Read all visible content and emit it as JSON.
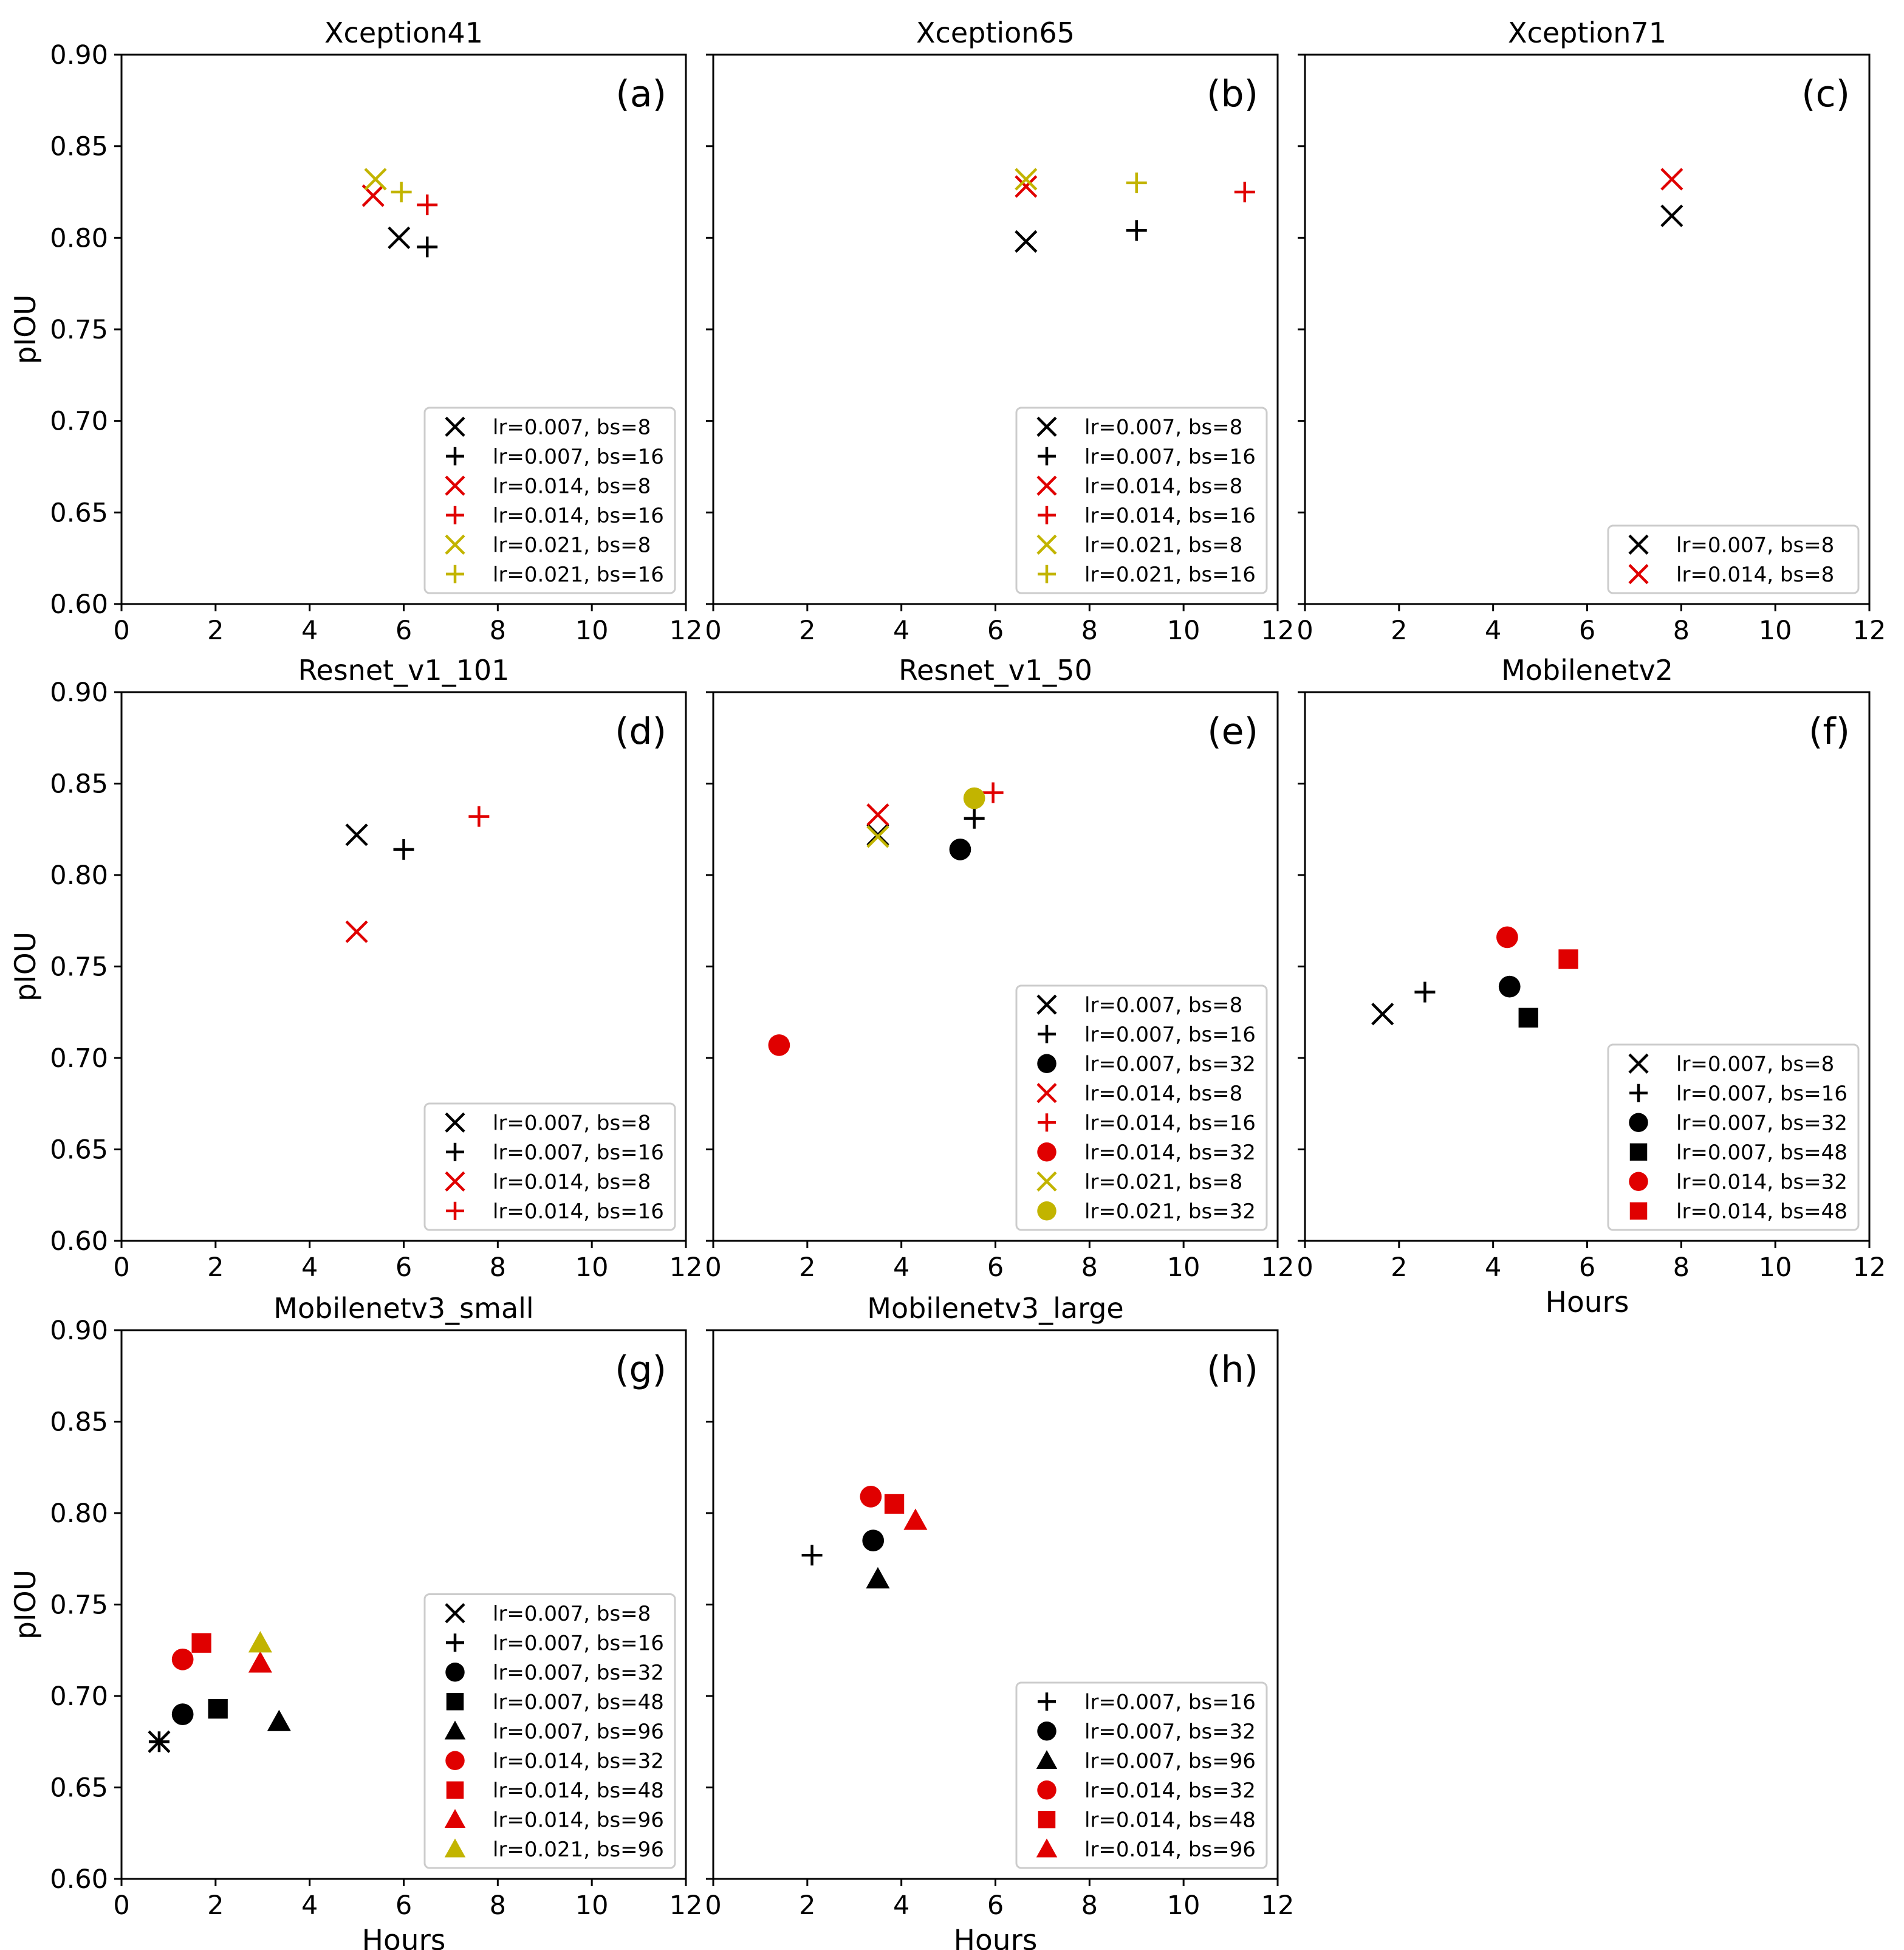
{
  "figure": {
    "ylabel": "pIOU",
    "xlabel": "Hours"
  },
  "colors": {
    "black": "#000000",
    "red": "#e00000",
    "yellow": "#c2b400"
  },
  "chart_data": [
    {
      "type": "scatter",
      "title": "Xception41",
      "letter": "(a)",
      "xlim": [
        0,
        12
      ],
      "ylim": [
        0.6,
        0.9
      ],
      "xticks": [
        "0",
        "2",
        "4",
        "6",
        "8",
        "10",
        "12"
      ],
      "yticks": [
        "0.60",
        "0.65",
        "0.70",
        "0.75",
        "0.80",
        "0.85",
        "0.90"
      ],
      "ylabel": "pIOU",
      "xlabel": "",
      "legend": "bottom-right",
      "grid": true,
      "series": [
        {
          "name": "lr=0.007, bs=8",
          "marker": "x",
          "color": "#000000",
          "x": [
            5.9
          ],
          "y": [
            0.8
          ]
        },
        {
          "name": "lr=0.007, bs=16",
          "marker": "+",
          "color": "#000000",
          "x": [
            6.5
          ],
          "y": [
            0.795
          ]
        },
        {
          "name": "lr=0.014, bs=8",
          "marker": "x",
          "color": "#e00000",
          "x": [
            5.35
          ],
          "y": [
            0.823
          ]
        },
        {
          "name": "lr=0.014, bs=16",
          "marker": "+",
          "color": "#e00000",
          "x": [
            6.5
          ],
          "y": [
            0.818
          ]
        },
        {
          "name": "lr=0.021, bs=8",
          "marker": "x",
          "color": "#c2b400",
          "x": [
            5.4
          ],
          "y": [
            0.832
          ]
        },
        {
          "name": "lr=0.021, bs=16",
          "marker": "+",
          "color": "#c2b400",
          "x": [
            5.95
          ],
          "y": [
            0.825
          ]
        }
      ]
    },
    {
      "type": "scatter",
      "title": "Xception65",
      "letter": "(b)",
      "xlim": [
        0,
        12
      ],
      "ylim": [
        0.6,
        0.9
      ],
      "xticks": [
        "0",
        "2",
        "4",
        "6",
        "8",
        "10",
        "12"
      ],
      "yticks": [
        "0.60",
        "0.65",
        "0.70",
        "0.75",
        "0.80",
        "0.85",
        "0.90"
      ],
      "ylabel": "",
      "xlabel": "",
      "legend": "bottom-right",
      "grid": true,
      "series": [
        {
          "name": "lr=0.007, bs=8",
          "marker": "x",
          "color": "#000000",
          "x": [
            6.65
          ],
          "y": [
            0.798
          ]
        },
        {
          "name": "lr=0.007, bs=16",
          "marker": "+",
          "color": "#000000",
          "x": [
            9.0
          ],
          "y": [
            0.804
          ]
        },
        {
          "name": "lr=0.014, bs=8",
          "marker": "x",
          "color": "#e00000",
          "x": [
            6.65
          ],
          "y": [
            0.828
          ]
        },
        {
          "name": "lr=0.014, bs=16",
          "marker": "+",
          "color": "#e00000",
          "x": [
            11.3
          ],
          "y": [
            0.825
          ]
        },
        {
          "name": "lr=0.021, bs=8",
          "marker": "x",
          "color": "#c2b400",
          "x": [
            6.65
          ],
          "y": [
            0.832
          ]
        },
        {
          "name": "lr=0.021, bs=16",
          "marker": "+",
          "color": "#c2b400",
          "x": [
            9.0
          ],
          "y": [
            0.83
          ]
        }
      ]
    },
    {
      "type": "scatter",
      "title": "Xception71",
      "letter": "(c)",
      "xlim": [
        0,
        12
      ],
      "ylim": [
        0.6,
        0.9
      ],
      "xticks": [
        "0",
        "2",
        "4",
        "6",
        "8",
        "10",
        "12"
      ],
      "yticks": [
        "0.60",
        "0.65",
        "0.70",
        "0.75",
        "0.80",
        "0.85",
        "0.90"
      ],
      "ylabel": "",
      "xlabel": "",
      "legend": "bottom-right",
      "grid": true,
      "series": [
        {
          "name": "lr=0.007, bs=8",
          "marker": "x",
          "color": "#000000",
          "x": [
            7.8
          ],
          "y": [
            0.812
          ]
        },
        {
          "name": "lr=0.014, bs=8",
          "marker": "x",
          "color": "#e00000",
          "x": [
            7.8
          ],
          "y": [
            0.832
          ]
        }
      ]
    },
    {
      "type": "scatter",
      "title": "Resnet_v1_101",
      "letter": "(d)",
      "xlim": [
        0,
        12
      ],
      "ylim": [
        0.6,
        0.9
      ],
      "xticks": [
        "0",
        "2",
        "4",
        "6",
        "8",
        "10",
        "12"
      ],
      "yticks": [
        "0.60",
        "0.65",
        "0.70",
        "0.75",
        "0.80",
        "0.85",
        "0.90"
      ],
      "ylabel": "pIOU",
      "xlabel": "",
      "legend": "bottom-right",
      "grid": true,
      "series": [
        {
          "name": "lr=0.007, bs=8",
          "marker": "x",
          "color": "#000000",
          "x": [
            5.0
          ],
          "y": [
            0.822
          ]
        },
        {
          "name": "lr=0.007, bs=16",
          "marker": "+",
          "color": "#000000",
          "x": [
            6.0
          ],
          "y": [
            0.814
          ]
        },
        {
          "name": "lr=0.014, bs=8",
          "marker": "x",
          "color": "#e00000",
          "x": [
            5.0
          ],
          "y": [
            0.769
          ]
        },
        {
          "name": "lr=0.014, bs=16",
          "marker": "+",
          "color": "#e00000",
          "x": [
            7.6
          ],
          "y": [
            0.832
          ]
        }
      ]
    },
    {
      "type": "scatter",
      "title": "Resnet_v1_50",
      "letter": "(e)",
      "xlim": [
        0,
        12
      ],
      "ylim": [
        0.6,
        0.9
      ],
      "xticks": [
        "0",
        "2",
        "4",
        "6",
        "8",
        "10",
        "12"
      ],
      "yticks": [
        "0.60",
        "0.65",
        "0.70",
        "0.75",
        "0.80",
        "0.85",
        "0.90"
      ],
      "ylabel": "",
      "xlabel": "",
      "legend": "bottom-right",
      "grid": true,
      "series": [
        {
          "name": "lr=0.007, bs=8",
          "marker": "x",
          "color": "#000000",
          "x": [
            3.5
          ],
          "y": [
            0.822
          ]
        },
        {
          "name": "lr=0.007, bs=16",
          "marker": "+",
          "color": "#000000",
          "x": [
            5.55
          ],
          "y": [
            0.831
          ]
        },
        {
          "name": "lr=0.007, bs=32",
          "marker": "o",
          "color": "#000000",
          "x": [
            5.25
          ],
          "y": [
            0.814
          ]
        },
        {
          "name": "lr=0.014, bs=8",
          "marker": "x",
          "color": "#e00000",
          "x": [
            3.5
          ],
          "y": [
            0.833
          ]
        },
        {
          "name": "lr=0.014, bs=16",
          "marker": "+",
          "color": "#e00000",
          "x": [
            5.95
          ],
          "y": [
            0.845
          ]
        },
        {
          "name": "lr=0.014, bs=32",
          "marker": "o",
          "color": "#e00000",
          "x": [
            1.4
          ],
          "y": [
            0.707
          ]
        },
        {
          "name": "lr=0.021, bs=8",
          "marker": "x",
          "color": "#c2b400",
          "x": [
            3.5
          ],
          "y": [
            0.821
          ]
        },
        {
          "name": "lr=0.021, bs=32",
          "marker": "o",
          "color": "#c2b400",
          "x": [
            5.55
          ],
          "y": [
            0.842
          ]
        }
      ]
    },
    {
      "type": "scatter",
      "title": "Mobilenetv2",
      "letter": "(f)",
      "xlim": [
        0,
        12
      ],
      "ylim": [
        0.6,
        0.9
      ],
      "xticks": [
        "0",
        "2",
        "4",
        "6",
        "8",
        "10",
        "12"
      ],
      "yticks": [
        "0.60",
        "0.65",
        "0.70",
        "0.75",
        "0.80",
        "0.85",
        "0.90"
      ],
      "ylabel": "",
      "xlabel": "Hours",
      "legend": "bottom-right",
      "grid": true,
      "series": [
        {
          "name": "lr=0.007, bs=8",
          "marker": "x",
          "color": "#000000",
          "x": [
            1.65
          ],
          "y": [
            0.724
          ]
        },
        {
          "name": "lr=0.007, bs=16",
          "marker": "+",
          "color": "#000000",
          "x": [
            2.55
          ],
          "y": [
            0.736
          ]
        },
        {
          "name": "lr=0.007, bs=32",
          "marker": "o",
          "color": "#000000",
          "x": [
            4.35
          ],
          "y": [
            0.739
          ]
        },
        {
          "name": "lr=0.007, bs=48",
          "marker": "s",
          "color": "#000000",
          "x": [
            4.75
          ],
          "y": [
            0.722
          ]
        },
        {
          "name": "lr=0.014, bs=32",
          "marker": "o",
          "color": "#e00000",
          "x": [
            4.3
          ],
          "y": [
            0.766
          ]
        },
        {
          "name": "lr=0.014, bs=48",
          "marker": "s",
          "color": "#e00000",
          "x": [
            5.6
          ],
          "y": [
            0.754
          ]
        }
      ]
    },
    {
      "type": "scatter",
      "title": "Mobilenetv3_small",
      "letter": "(g)",
      "xlim": [
        0,
        12
      ],
      "ylim": [
        0.6,
        0.9
      ],
      "xticks": [
        "0",
        "2",
        "4",
        "6",
        "8",
        "10",
        "12"
      ],
      "yticks": [
        "0.60",
        "0.65",
        "0.70",
        "0.75",
        "0.80",
        "0.85",
        "0.90"
      ],
      "ylabel": "pIOU",
      "xlabel": "Hours",
      "legend": "bottom-right",
      "grid": true,
      "series": [
        {
          "name": "lr=0.007, bs=8",
          "marker": "x",
          "color": "#000000",
          "x": [
            0.8
          ],
          "y": [
            0.675
          ]
        },
        {
          "name": "lr=0.007, bs=16",
          "marker": "+",
          "color": "#000000",
          "x": [
            0.8
          ],
          "y": [
            0.675
          ]
        },
        {
          "name": "lr=0.007, bs=32",
          "marker": "o",
          "color": "#000000",
          "x": [
            1.3
          ],
          "y": [
            0.69
          ]
        },
        {
          "name": "lr=0.007, bs=48",
          "marker": "s",
          "color": "#000000",
          "x": [
            2.05
          ],
          "y": [
            0.693
          ]
        },
        {
          "name": "lr=0.007, bs=96",
          "marker": "^",
          "color": "#000000",
          "x": [
            3.35
          ],
          "y": [
            0.686
          ]
        },
        {
          "name": "lr=0.014, bs=32",
          "marker": "o",
          "color": "#e00000",
          "x": [
            1.3
          ],
          "y": [
            0.72
          ]
        },
        {
          "name": "lr=0.014, bs=48",
          "marker": "s",
          "color": "#e00000",
          "x": [
            1.7
          ],
          "y": [
            0.729
          ]
        },
        {
          "name": "lr=0.014, bs=96",
          "marker": "^",
          "color": "#e00000",
          "x": [
            2.95
          ],
          "y": [
            0.718
          ]
        },
        {
          "name": "lr=0.021, bs=96",
          "marker": "^",
          "color": "#c2b400",
          "x": [
            2.95
          ],
          "y": [
            0.729
          ]
        }
      ]
    },
    {
      "type": "scatter",
      "title": "Mobilenetv3_large",
      "letter": "(h)",
      "xlim": [
        0,
        12
      ],
      "ylim": [
        0.6,
        0.9
      ],
      "xticks": [
        "0",
        "2",
        "4",
        "6",
        "8",
        "10",
        "12"
      ],
      "yticks": [
        "0.60",
        "0.65",
        "0.70",
        "0.75",
        "0.80",
        "0.85",
        "0.90"
      ],
      "ylabel": "",
      "xlabel": "Hours",
      "legend": "bottom-right",
      "grid": true,
      "series": [
        {
          "name": "lr=0.007, bs=16",
          "marker": "+",
          "color": "#000000",
          "x": [
            2.1
          ],
          "y": [
            0.777
          ]
        },
        {
          "name": "lr=0.007, bs=32",
          "marker": "o",
          "color": "#000000",
          "x": [
            3.4
          ],
          "y": [
            0.785
          ]
        },
        {
          "name": "lr=0.007, bs=96",
          "marker": "^",
          "color": "#000000",
          "x": [
            3.5
          ],
          "y": [
            0.764
          ]
        },
        {
          "name": "lr=0.014, bs=32",
          "marker": "o",
          "color": "#e00000",
          "x": [
            3.35
          ],
          "y": [
            0.809
          ]
        },
        {
          "name": "lr=0.014, bs=48",
          "marker": "s",
          "color": "#e00000",
          "x": [
            3.85
          ],
          "y": [
            0.805
          ]
        },
        {
          "name": "lr=0.014, bs=96",
          "marker": "^",
          "color": "#e00000",
          "x": [
            4.3
          ],
          "y": [
            0.796
          ]
        }
      ]
    }
  ]
}
